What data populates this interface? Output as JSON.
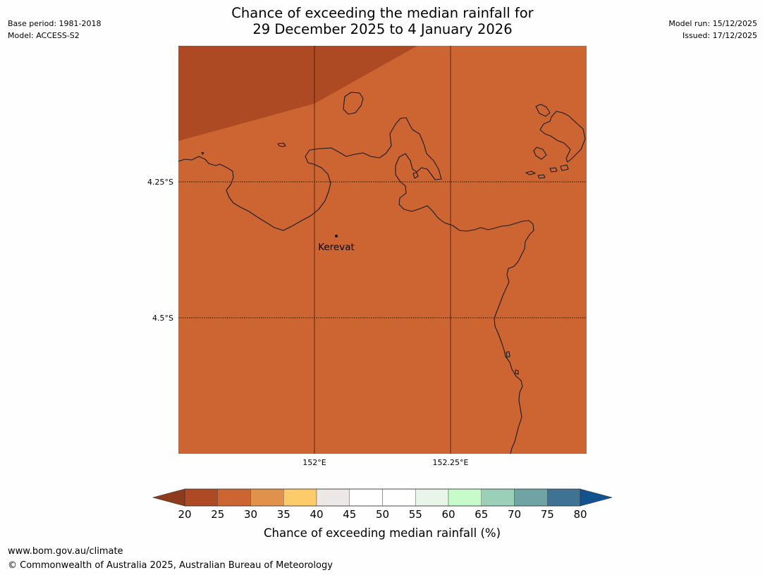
{
  "title": {
    "line1": "Chance of exceeding the median rainfall for",
    "line2": "29 December 2025 to 4 January 2026"
  },
  "meta_left": {
    "base_period": "Base period: 1981-2018",
    "model": "Model: ACCESS-S2"
  },
  "meta_right": {
    "model_run": "Model run: 15/12/2025",
    "issued": "Issued: 17/12/2025"
  },
  "map": {
    "latitude_labels": [
      "4.25°S",
      "4.5°S"
    ],
    "longitude_labels": [
      "152°E",
      "152.25°E"
    ],
    "place": {
      "name": "Kerevat"
    },
    "fill_colors": {
      "land_main": "#cc6532",
      "land_corner": "#ad4a24",
      "coastline": "#1a1a1a"
    },
    "dominant_category": "25-30",
    "corner_category": "20-25"
  },
  "colorbar": {
    "label": "Chance of exceeding median rainfall (%)",
    "ticks": [
      "20",
      "25",
      "30",
      "35",
      "40",
      "45",
      "50",
      "55",
      "60",
      "65",
      "70",
      "75",
      "80"
    ],
    "under_color": "#8e3b1d",
    "over_color": "#12538f",
    "colors": [
      "#ad4a24",
      "#cc6532",
      "#e0924a",
      "#fdcb6a",
      "#ece8e5",
      "#ffffff",
      "#ffffff",
      "#e8f5e8",
      "#c7fcca",
      "#9ccfb7",
      "#6fa3a4",
      "#3e7393"
    ]
  },
  "footer": {
    "url": "www.bom.gov.au/climate",
    "copyright": "© Commonwealth of Australia 2025, Australian Bureau of Meteorology"
  }
}
